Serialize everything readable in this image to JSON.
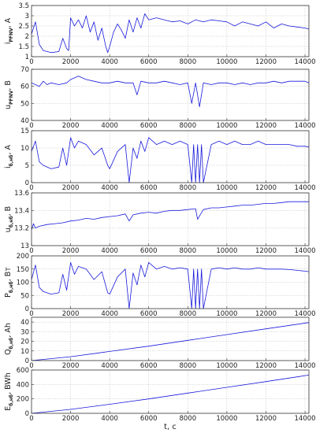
{
  "chart_data": [
    {
      "type": "line",
      "ylabel": "i",
      "ylabel_sub": "PFNV",
      "ylabel_unit": ", A",
      "xlim": [
        0,
        14200
      ],
      "ylim": [
        1,
        3.5
      ],
      "yticks": [
        "1",
        "1.5",
        "2",
        "2.5",
        "3",
        "3.5"
      ],
      "xticks": [
        "0",
        "2000",
        "4000",
        "6000",
        "8000",
        "10000",
        "12000",
        "14000"
      ],
      "grid": true,
      "x": [
        0,
        200,
        400,
        600,
        1000,
        1400,
        1600,
        1800,
        1900,
        2000,
        2200,
        2400,
        2600,
        2800,
        3000,
        3200,
        3400,
        3600,
        3800,
        3900,
        4000,
        4200,
        4400,
        4600,
        4800,
        5000,
        5200,
        5400,
        5600,
        5800,
        6000,
        6400,
        6800,
        7200,
        7600,
        8000,
        8400,
        8800,
        9200,
        9600,
        10000,
        10400,
        10800,
        11200,
        11600,
        12000,
        12400,
        12800,
        13200,
        13600,
        14000,
        14200
      ],
      "y": [
        2.1,
        2.7,
        1.6,
        1.3,
        1.2,
        1.25,
        1.9,
        1.4,
        1.3,
        2.9,
        2.5,
        2.8,
        2.4,
        3.0,
        2.2,
        2.7,
        1.8,
        2.4,
        1.5,
        1.2,
        1.5,
        2.2,
        2.6,
        2.3,
        1.9,
        2.8,
        2.2,
        2.9,
        2.4,
        3.1,
        2.8,
        2.9,
        2.8,
        2.7,
        2.75,
        2.6,
        2.8,
        2.7,
        2.8,
        2.75,
        2.7,
        2.5,
        2.7,
        2.6,
        2.5,
        2.7,
        2.4,
        2.6,
        2.5,
        2.45,
        2.4,
        2.35
      ]
    },
    {
      "type": "line",
      "ylabel": "u",
      "ylabel_sub": "PFNV",
      "ylabel_unit": ", B",
      "xlim": [
        0,
        14200
      ],
      "ylim": [
        40,
        70
      ],
      "yticks": [
        "40",
        "50",
        "60",
        "70"
      ],
      "xticks": [
        "0",
        "2000",
        "4000",
        "6000",
        "8000",
        "10000",
        "12000",
        "14000"
      ],
      "grid": true,
      "x": [
        0,
        400,
        600,
        800,
        1000,
        1400,
        1800,
        2000,
        2400,
        2800,
        3200,
        3600,
        4000,
        4400,
        4800,
        5200,
        5400,
        5600,
        6000,
        6400,
        6800,
        7200,
        7600,
        8000,
        8200,
        8400,
        8600,
        8800,
        9200,
        9600,
        10000,
        10400,
        10800,
        11200,
        11600,
        12000,
        12400,
        12800,
        13200,
        13600,
        14000,
        14200
      ],
      "y": [
        62,
        60,
        63,
        61,
        62,
        61,
        62,
        64,
        66,
        64,
        63,
        62,
        62,
        63,
        62,
        62,
        55,
        63,
        62,
        62,
        63,
        62,
        61,
        62,
        50,
        62,
        48,
        62,
        61,
        62,
        62,
        61,
        62,
        61,
        62,
        62,
        63,
        62,
        63,
        63,
        63,
        62
      ]
    },
    {
      "type": "line",
      "ylabel": "i",
      "ylabel_sub": "б,нб",
      "ylabel_unit": ", A",
      "xlim": [
        0,
        14200
      ],
      "ylim": [
        0,
        15
      ],
      "yticks": [
        "0",
        "5",
        "10",
        "15"
      ],
      "xticks": [
        "0",
        "2000",
        "4000",
        "6000",
        "8000",
        "10000",
        "12000",
        "14000"
      ],
      "grid": true,
      "x": [
        0,
        200,
        400,
        600,
        1000,
        1400,
        1600,
        1800,
        2000,
        2200,
        2400,
        2800,
        3200,
        3600,
        3900,
        4000,
        4400,
        4800,
        5000,
        5200,
        5400,
        5600,
        5800,
        6000,
        6400,
        6800,
        7200,
        7600,
        8000,
        8200,
        8300,
        8400,
        8500,
        8600,
        8700,
        8800,
        9200,
        9600,
        10000,
        10400,
        10800,
        11200,
        11600,
        12000,
        12400,
        12800,
        13200,
        13600,
        14000,
        14200
      ],
      "y": [
        9,
        12,
        6,
        5,
        4,
        4.5,
        10,
        5,
        13,
        10,
        12,
        11,
        8,
        10,
        5,
        4,
        9,
        11,
        0,
        10,
        7,
        12,
        9,
        13,
        11,
        12,
        11,
        12,
        11,
        0,
        11,
        0,
        11,
        0,
        11,
        0,
        11,
        12,
        11,
        12,
        11,
        11,
        12,
        11,
        11,
        11,
        11,
        10.5,
        10.5,
        10.3
      ]
    },
    {
      "type": "line",
      "ylabel": "u",
      "ylabel_sub": "б,нб",
      "ylabel_unit": ", B",
      "xlim": [
        0,
        14200
      ],
      "ylim": [
        13,
        13.6
      ],
      "yticks": [
        "13",
        "13.2",
        "13.4",
        "13.6"
      ],
      "xticks": [
        "0",
        "2000",
        "4000",
        "6000",
        "8000",
        "10000",
        "12000",
        "14000"
      ],
      "grid": true,
      "x": [
        0,
        100,
        200,
        400,
        800,
        1200,
        1600,
        2000,
        2400,
        2800,
        3200,
        3600,
        4000,
        4400,
        4800,
        5000,
        5200,
        5600,
        6000,
        6400,
        6800,
        7200,
        7600,
        8000,
        8400,
        8500,
        8800,
        9200,
        9600,
        10000,
        10400,
        10800,
        11200,
        11600,
        12000,
        12400,
        12800,
        13200,
        13600,
        14000,
        14200
      ],
      "y": [
        13.18,
        13.25,
        13.2,
        13.22,
        13.24,
        13.25,
        13.26,
        13.28,
        13.29,
        13.31,
        13.3,
        13.32,
        13.33,
        13.34,
        13.36,
        13.28,
        13.35,
        13.37,
        13.38,
        13.37,
        13.39,
        13.4,
        13.4,
        13.41,
        13.42,
        13.3,
        13.41,
        13.43,
        13.43,
        13.44,
        13.45,
        13.46,
        13.46,
        13.47,
        13.48,
        13.48,
        13.49,
        13.5,
        13.5,
        13.5,
        13.5
      ]
    },
    {
      "type": "line",
      "ylabel": "P",
      "ylabel_sub": "б,нб",
      "ylabel_unit": ", Вт",
      "xlim": [
        0,
        14200
      ],
      "ylim": [
        0,
        200
      ],
      "yticks": [
        "0",
        "50",
        "100",
        "150",
        "200"
      ],
      "xticks": [
        "0",
        "2000",
        "4000",
        "6000",
        "8000",
        "10000",
        "12000",
        "14000"
      ],
      "grid": true,
      "x": [
        0,
        200,
        400,
        600,
        1000,
        1400,
        1600,
        1800,
        2000,
        2200,
        2400,
        2800,
        3200,
        3600,
        3900,
        4000,
        4400,
        4800,
        5000,
        5200,
        5400,
        5600,
        5800,
        6000,
        6400,
        6800,
        7200,
        7600,
        8000,
        8200,
        8300,
        8400,
        8500,
        8600,
        8700,
        8800,
        9200,
        9600,
        10000,
        10400,
        10800,
        11200,
        11600,
        12000,
        12400,
        12800,
        13200,
        13600,
        14000,
        14200
      ],
      "y": [
        110,
        165,
        80,
        65,
        55,
        60,
        130,
        70,
        175,
        130,
        160,
        150,
        110,
        140,
        60,
        55,
        120,
        150,
        0,
        135,
        90,
        165,
        120,
        175,
        150,
        160,
        150,
        155,
        150,
        0,
        150,
        0,
        150,
        0,
        150,
        0,
        150,
        155,
        150,
        155,
        150,
        150,
        155,
        150,
        150,
        150,
        148,
        145,
        142,
        140
      ]
    },
    {
      "type": "line",
      "ylabel": "Q",
      "ylabel_sub": "б,нб",
      "ylabel_unit": ", Ah",
      "xlim": [
        0,
        14200
      ],
      "ylim": [
        0,
        45
      ],
      "yticks": [
        "0",
        "10",
        "20",
        "30",
        "40"
      ],
      "xticks": [
        "0",
        "2000",
        "4000",
        "6000",
        "8000",
        "10000",
        "12000",
        "14000"
      ],
      "grid": true,
      "x": [
        0,
        2000,
        4000,
        6000,
        8000,
        10000,
        12000,
        14200
      ],
      "y": [
        0,
        4,
        9.5,
        15,
        21,
        27,
        33,
        39.5
      ]
    },
    {
      "type": "line",
      "ylabel": "E",
      "ylabel_sub": "б,нб",
      "ylabel_unit": ", BWh",
      "xlabel": "t, c",
      "xlim": [
        0,
        14200
      ],
      "ylim": [
        0,
        600
      ],
      "yticks": [
        "0",
        "200",
        "400",
        "600"
      ],
      "xticks": [
        "0",
        "2000",
        "4000",
        "6000",
        "8000",
        "10000",
        "12000",
        "14000"
      ],
      "grid": true,
      "x": [
        0,
        2000,
        4000,
        6000,
        8000,
        10000,
        12000,
        14200
      ],
      "y": [
        0,
        55,
        125,
        200,
        280,
        360,
        440,
        530
      ]
    }
  ]
}
